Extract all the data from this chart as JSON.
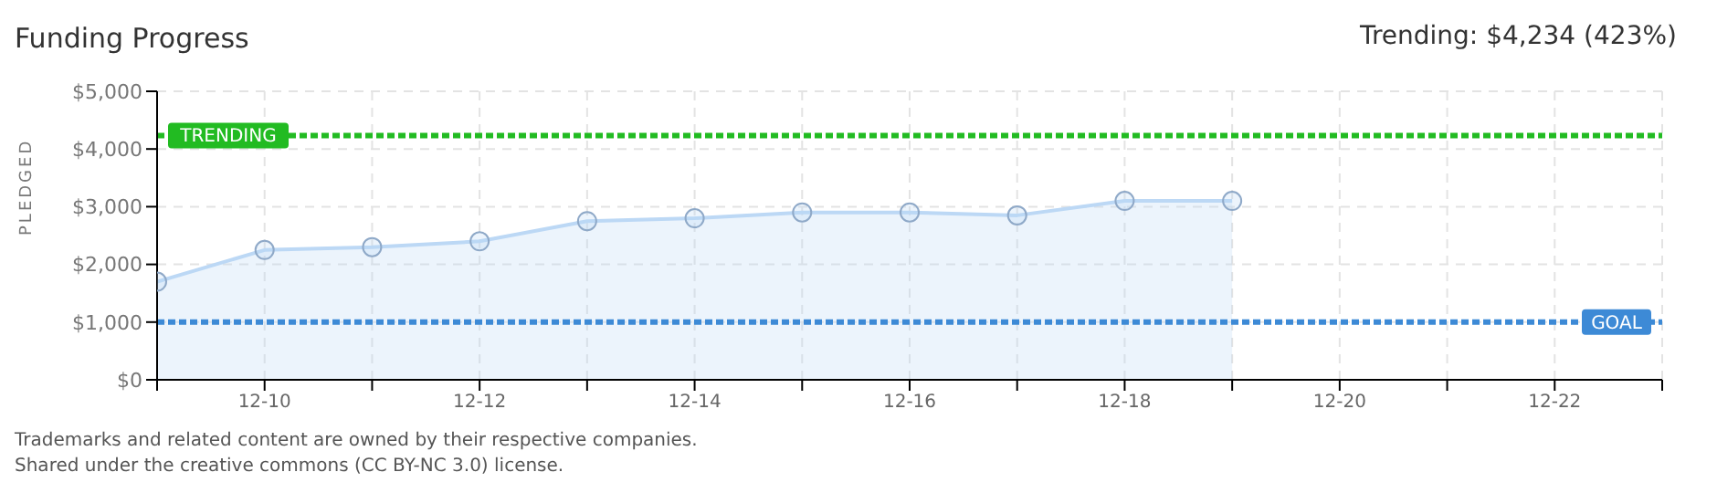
{
  "chart_data": {
    "type": "area",
    "title": "Funding Progress",
    "ylabel": "PLEDGED",
    "x": [
      "--12-09",
      "--12-10",
      "--12-11",
      "--12-12",
      "--12-13",
      "--12-14",
      "--12-15",
      "--12-16",
      "--12-17",
      "--12-18",
      "--12-19"
    ],
    "series": [
      {
        "color": "#bcd8f5",
        "values": [
          1700,
          2250,
          2300,
          2400,
          2750,
          2800,
          2900,
          2900,
          2850,
          3100,
          3100
        ]
      }
    ],
    "marker": "circle",
    "xlim": [
      "--12-09",
      "--12-23"
    ],
    "xticks": [
      {
        "value": "--12-09",
        "label": null
      },
      {
        "value": "--12-10",
        "label": "12-10"
      },
      {
        "value": "--12-11",
        "label": null
      },
      {
        "value": "--12-12",
        "label": "12-12"
      },
      {
        "value": "--12-13",
        "label": null
      },
      {
        "value": "--12-14",
        "label": "12-14"
      },
      {
        "value": "--12-15",
        "label": null
      },
      {
        "value": "--12-16",
        "label": "12-16"
      },
      {
        "value": "--12-17",
        "label": null
      },
      {
        "value": "--12-18",
        "label": "12-18"
      },
      {
        "value": "--12-19",
        "label": null
      },
      {
        "value": "--12-20",
        "label": "12-20"
      },
      {
        "value": "--12-21",
        "label": null
      },
      {
        "value": "--12-22",
        "label": "12-22"
      },
      {
        "value": "--12-23",
        "label": null
      }
    ],
    "ylim": [
      0,
      5000
    ],
    "yticks": [
      {
        "value": 0,
        "label": "$0"
      },
      {
        "value": 1000,
        "label": "$1,000"
      },
      {
        "value": 2000,
        "label": "$2,000"
      },
      {
        "value": 3000,
        "label": "$3,000"
      },
      {
        "value": 4000,
        "label": "$4,000"
      },
      {
        "value": 5000,
        "label": "$5,000"
      }
    ],
    "grid": true,
    "ref_lines": [
      {
        "axis": "y",
        "value": 4234,
        "label": "TRENDING",
        "color": "#22bb22",
        "line_style": "dotted"
      },
      {
        "axis": "y",
        "value": 1000,
        "label": "GOAL",
        "color": "#3d8ad6",
        "line_style": "dotted"
      }
    ],
    "annotations": [
      "Trending: $4,234 (423%)",
      "Trademarks and related content are owned by their respective companies.",
      "Shared under the creative commons (CC BY-NC 3.0) license."
    ]
  }
}
